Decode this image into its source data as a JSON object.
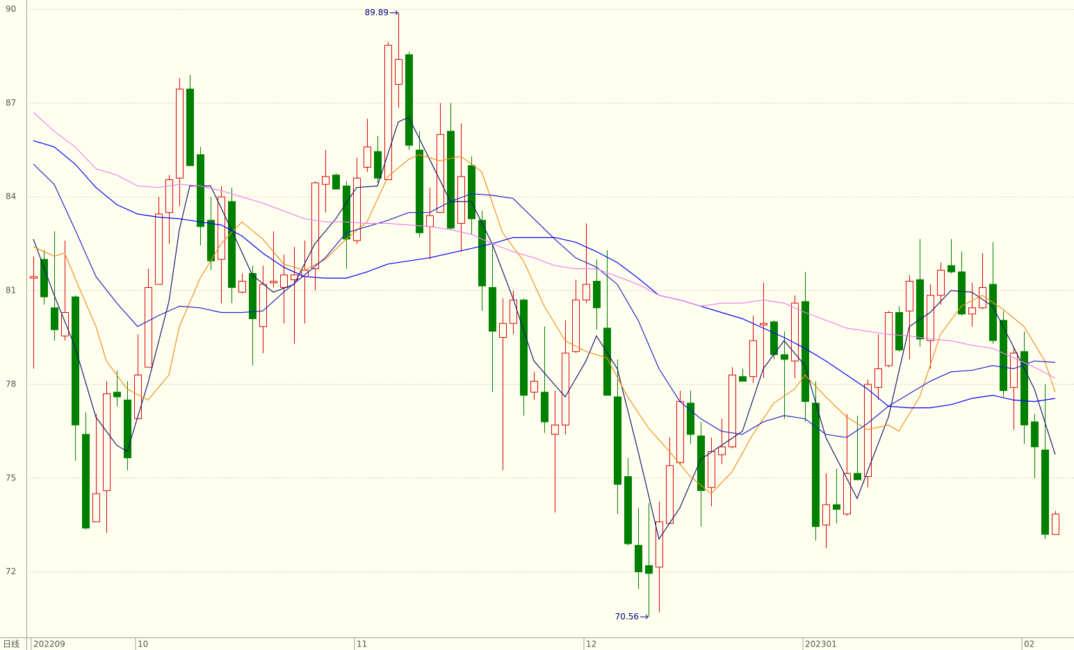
{
  "chart_data": {
    "type": "candlestick",
    "period": "日线",
    "categories": [
      "202209",
      null,
      null,
      null,
      null,
      null,
      null,
      null,
      null,
      null,
      "10",
      null,
      null,
      null,
      null,
      null,
      null,
      null,
      null,
      null,
      null,
      null,
      null,
      null,
      null,
      null,
      null,
      null,
      null,
      null,
      null,
      "11",
      null,
      null,
      null,
      null,
      null,
      null,
      null,
      null,
      null,
      null,
      null,
      null,
      null,
      null,
      null,
      null,
      null,
      null,
      null,
      null,
      null,
      "12",
      null,
      null,
      null,
      null,
      null,
      null,
      null,
      null,
      null,
      null,
      null,
      null,
      null,
      null,
      null,
      null,
      null,
      null,
      null,
      null,
      "202301",
      null,
      null,
      null,
      null,
      null,
      null,
      null,
      null,
      null,
      null,
      null,
      null,
      null,
      null,
      null,
      null,
      null,
      null,
      null,
      null,
      "02",
      null,
      null,
      null
    ],
    "open": [
      81.4,
      82.0,
      80.45,
      79.55,
      80.8,
      76.4,
      73.6,
      74.6,
      77.75,
      77.5,
      76.9,
      78.55,
      81.2,
      83.5,
      84.6,
      87.45,
      85.35,
      83.25,
      82.0,
      83.85,
      80.95,
      81.55,
      79.85,
      81.25,
      81.1,
      81.35,
      81.45,
      81.7,
      84.4,
      84.7,
      84.35,
      82.6,
      84.95,
      85.45,
      84.55,
      87.6,
      88.55,
      85.5,
      83.05,
      83.5,
      86.1,
      83.15,
      85.0,
      83.25,
      81.1,
      79.5,
      79.95,
      80.7,
      77.75,
      77.75,
      76.4,
      76.7,
      79.05,
      80.7,
      81.3,
      79.8,
      77.6,
      75.05,
      72.85,
      72.2,
      72.15,
      73.55,
      75.5,
      77.4,
      76.35,
      74.7,
      75.75,
      76.0,
      78.25,
      78.25,
      79.9,
      80.0,
      78.95,
      78.75,
      80.65,
      77.4,
      73.5,
      74.15,
      73.85,
      75.15,
      75.05,
      77.9,
      78.6,
      80.3,
      80.35,
      81.35,
      79.4,
      80.85,
      81.8,
      81.6,
      80.25,
      80.45,
      81.2,
      80.05,
      77.9,
      79.05,
      76.8,
      75.9,
      73.2
    ],
    "high": [
      82.1,
      82.3,
      82.9,
      82.6,
      80.85,
      77.1,
      77.05,
      78.1,
      78.45,
      78.1,
      79.6,
      81.7,
      84.0,
      84.7,
      87.8,
      87.9,
      85.6,
      84.0,
      84.35,
      84.3,
      81.55,
      81.8,
      81.8,
      82.9,
      82.15,
      82.4,
      82.6,
      84.5,
      85.5,
      84.75,
      84.5,
      85.25,
      86.5,
      85.95,
      88.95,
      89.89,
      88.65,
      86.1,
      84.3,
      87.0,
      87.0,
      86.35,
      85.3,
      83.55,
      82.5,
      80.75,
      81.0,
      80.75,
      78.4,
      79.85,
      77.8,
      80.05,
      81.35,
      83.15,
      82.0,
      82.3,
      78.8,
      75.65,
      74.05,
      74.2,
      74.25,
      76.3,
      77.8,
      77.8,
      76.8,
      76.3,
      76.9,
      78.55,
      78.5,
      80.2,
      81.25,
      80.05,
      79.7,
      80.85,
      81.6,
      78.1,
      75.15,
      75.3,
      77.05,
      77.0,
      78.15,
      79.6,
      80.35,
      80.5,
      81.5,
      82.65,
      81.2,
      81.9,
      82.65,
      82.25,
      81.25,
      82.2,
      82.55,
      80.35,
      79.2,
      79.7,
      77.05,
      78.0,
      73.95
    ],
    "low": [
      78.5,
      80.55,
      79.4,
      79.4,
      75.55,
      73.35,
      73.6,
      73.25,
      77.3,
      75.25,
      76.9,
      78.55,
      81.2,
      82.5,
      83.7,
      85.0,
      82.45,
      81.65,
      80.6,
      80.6,
      80.9,
      78.6,
      79.0,
      81.1,
      79.95,
      79.3,
      79.95,
      81.0,
      83.5,
      84.25,
      81.7,
      82.5,
      84.8,
      84.45,
      84.55,
      86.85,
      85.5,
      82.7,
      82.0,
      83.5,
      82.95,
      82.25,
      82.8,
      80.35,
      77.75,
      75.25,
      79.6,
      77.0,
      77.5,
      76.45,
      73.9,
      76.4,
      79.0,
      80.6,
      79.75,
      77.65,
      73.85,
      72.85,
      71.45,
      70.56,
      70.7,
      73.55,
      75.45,
      76.1,
      73.45,
      74.1,
      75.45,
      75.95,
      78.1,
      78.05,
      78.2,
      78.8,
      76.9,
      78.2,
      76.8,
      73.0,
      72.75,
      73.55,
      73.8,
      74.95,
      74.7,
      77.5,
      78.55,
      79.05,
      78.8,
      79.2,
      78.5,
      80.55,
      81.55,
      80.2,
      79.85,
      80.4,
      79.3,
      77.6,
      76.55,
      76.1,
      75.0,
      73.05,
      73.2
    ],
    "close": [
      81.45,
      80.8,
      79.75,
      80.3,
      76.7,
      73.4,
      74.5,
      77.7,
      77.6,
      75.65,
      78.3,
      81.1,
      83.45,
      84.55,
      87.45,
      85.0,
      83.05,
      81.95,
      84.0,
      81.1,
      81.3,
      80.1,
      81.2,
      81.3,
      81.5,
      81.5,
      81.65,
      84.45,
      84.65,
      84.25,
      82.65,
      84.6,
      85.6,
      84.6,
      88.85,
      88.4,
      85.65,
      82.85,
      83.4,
      86.0,
      83.0,
      84.65,
      83.3,
      81.15,
      79.7,
      79.95,
      80.7,
      77.65,
      78.1,
      76.8,
      76.7,
      79.0,
      80.7,
      81.2,
      80.45,
      77.65,
      74.8,
      72.9,
      72.0,
      71.95,
      73.6,
      75.4,
      77.45,
      76.4,
      74.6,
      75.85,
      76.0,
      78.3,
      78.1,
      79.4,
      79.95,
      78.95,
      78.8,
      80.6,
      77.45,
      73.45,
      74.15,
      74.0,
      75.15,
      74.95,
      78.0,
      78.5,
      80.3,
      79.1,
      81.3,
      79.45,
      80.85,
      81.65,
      81.6,
      80.25,
      80.45,
      81.1,
      79.4,
      77.8,
      79.0,
      76.7,
      76.0,
      73.2,
      73.85
    ],
    "up_color": "#e00000",
    "down_color": "#008000",
    "lines": [
      {
        "color": "#1a1a6e",
        "x": [
          0,
          2,
          4,
          6,
          8,
          9,
          11,
          13,
          14,
          15,
          17,
          19,
          21,
          23,
          25,
          27,
          29,
          31,
          33,
          35,
          36,
          38,
          40,
          42,
          44,
          46,
          48,
          51,
          53,
          54,
          56,
          58,
          60,
          62,
          64,
          66,
          68,
          70,
          72,
          74,
          76,
          79,
          82,
          84,
          86,
          88,
          90,
          92,
          94,
          96,
          98
        ],
        "values": [
          82.65,
          80.85,
          79.2,
          76.95,
          76.05,
          75.85,
          78.05,
          80.65,
          82.95,
          84.35,
          84.35,
          82.95,
          81.5,
          80.95,
          81.2,
          82.5,
          83.3,
          84.3,
          84.35,
          86.4,
          86.55,
          85.2,
          83.85,
          83.85,
          82.5,
          80.75,
          78.75,
          77.6,
          78.75,
          79.55,
          78.5,
          75.85,
          73.05,
          74.05,
          75.6,
          76.05,
          76.5,
          78.5,
          79.4,
          78.6,
          76.3,
          74.35,
          76.95,
          79.85,
          80.3,
          81.0,
          80.95,
          80.5,
          79.2,
          77.85,
          75.75
        ]
      },
      {
        "color": "#f0901e",
        "x": [
          0,
          2,
          3,
          4,
          6,
          7,
          9,
          11,
          13,
          14,
          16,
          18,
          20,
          22,
          24,
          26,
          28,
          30,
          32,
          34,
          36,
          37,
          39,
          41,
          43,
          45,
          47,
          49,
          51,
          53,
          55,
          57,
          59,
          61,
          63,
          65,
          67,
          69,
          71,
          73,
          74,
          76,
          78,
          80,
          82,
          83,
          85,
          87,
          89,
          91,
          93,
          95,
          97,
          98
        ],
        "values": [
          82.4,
          82.1,
          82.2,
          81.4,
          79.85,
          78.75,
          77.85,
          77.5,
          78.3,
          79.85,
          81.4,
          82.5,
          83.2,
          82.65,
          81.85,
          81.65,
          82.0,
          82.65,
          83.2,
          84.65,
          85.2,
          85.35,
          85.15,
          85.3,
          84.8,
          82.85,
          81.95,
          80.5,
          79.4,
          79.05,
          78.85,
          77.6,
          76.6,
          75.85,
          75.05,
          74.5,
          75.2,
          76.4,
          77.4,
          77.85,
          78.3,
          77.6,
          76.95,
          76.55,
          76.7,
          76.5,
          77.6,
          79.6,
          80.5,
          80.85,
          80.4,
          79.85,
          78.75,
          77.75
        ]
      },
      {
        "color": "#2424c8",
        "x": [
          0,
          2,
          4,
          6,
          8,
          10,
          12,
          14,
          16,
          18,
          20,
          22,
          24,
          26,
          28,
          30,
          32,
          34,
          36,
          38,
          40,
          42,
          44,
          46,
          48,
          50,
          52,
          54,
          56,
          58,
          60,
          62,
          64,
          66,
          68,
          70,
          72,
          74,
          76,
          78,
          80,
          82,
          84,
          86,
          88,
          90,
          92,
          94,
          96,
          98
        ],
        "values": [
          85.05,
          84.4,
          82.95,
          81.45,
          80.6,
          79.85,
          80.2,
          80.5,
          80.45,
          80.3,
          80.3,
          80.35,
          80.95,
          81.5,
          82.05,
          82.85,
          83.05,
          83.25,
          83.5,
          83.5,
          83.85,
          84.1,
          84.05,
          83.95,
          83.3,
          82.65,
          82.05,
          81.75,
          81.2,
          80.05,
          78.5,
          77.45,
          76.9,
          76.5,
          76.4,
          76.8,
          77.0,
          76.9,
          76.4,
          76.3,
          76.75,
          77.3,
          77.7,
          78.1,
          78.4,
          78.45,
          78.6,
          78.5,
          78.75,
          78.7
        ]
      },
      {
        "color": "#0000ff",
        "x": [
          0,
          2,
          4,
          6,
          8,
          10,
          12,
          14,
          16,
          18,
          20,
          22,
          24,
          26,
          28,
          30,
          32,
          34,
          36,
          38,
          40,
          42,
          44,
          46,
          50,
          52,
          54,
          56,
          58,
          60,
          62,
          64,
          66,
          68,
          70,
          72,
          74,
          76,
          78,
          80,
          82,
          84,
          86,
          88,
          90,
          92,
          94,
          96,
          98
        ],
        "values": [
          85.8,
          85.6,
          85.05,
          84.3,
          83.75,
          83.45,
          83.35,
          83.3,
          83.2,
          83.1,
          82.75,
          82.2,
          81.75,
          81.45,
          81.4,
          81.4,
          81.6,
          81.85,
          81.95,
          82.05,
          82.2,
          82.35,
          82.5,
          82.7,
          82.7,
          82.55,
          82.25,
          81.9,
          81.4,
          80.85,
          80.7,
          80.5,
          80.3,
          80.1,
          79.8,
          79.5,
          79.15,
          78.75,
          78.3,
          77.85,
          77.3,
          77.25,
          77.25,
          77.35,
          77.55,
          77.65,
          77.5,
          77.45,
          77.55
        ]
      },
      {
        "color": "#ee82ee",
        "x": [
          0,
          2,
          4,
          6,
          8,
          10,
          12,
          14,
          16,
          18,
          20,
          22,
          24,
          26,
          28,
          30,
          32,
          34,
          36,
          38,
          40,
          42,
          44,
          46,
          48,
          50,
          52,
          54,
          56,
          58,
          60,
          62,
          64,
          66,
          68,
          70,
          72,
          74,
          76,
          78,
          80,
          82,
          84,
          86,
          88,
          90,
          92,
          94,
          96,
          98
        ],
        "values": [
          86.7,
          86.1,
          85.6,
          84.9,
          84.7,
          84.35,
          84.3,
          84.4,
          84.35,
          84.2,
          84.0,
          83.8,
          83.55,
          83.3,
          83.2,
          83.2,
          83.15,
          83.15,
          83.1,
          83.05,
          82.95,
          82.8,
          82.5,
          82.25,
          82.05,
          81.8,
          81.7,
          81.7,
          81.45,
          81.2,
          80.85,
          80.7,
          80.5,
          80.6,
          80.6,
          80.7,
          80.6,
          80.3,
          80.05,
          79.8,
          79.7,
          79.6,
          79.55,
          79.45,
          79.4,
          79.25,
          79.15,
          78.85,
          78.55,
          78.2
        ]
      }
    ],
    "annotations": [
      89.89,
      70.56
    ],
    "ylim": [
      69.9,
      90.3
    ],
    "yticks": [
      72,
      75,
      78,
      81,
      84,
      87,
      90
    ],
    "grid": true
  }
}
